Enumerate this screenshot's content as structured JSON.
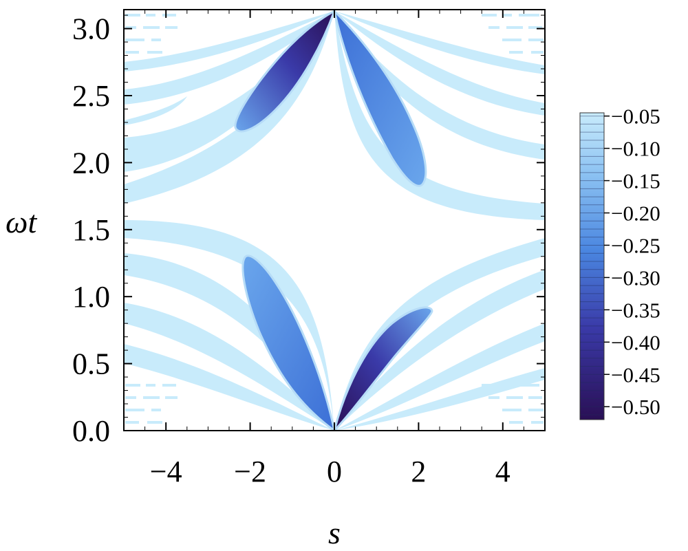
{
  "chart_data": {
    "type": "heatmap",
    "subtype": "contour",
    "title": "",
    "xlabel": "s",
    "ylabel": "ωt",
    "xlim": [
      -5,
      5
    ],
    "ylim": [
      0,
      3.1416
    ],
    "x_ticks": [
      {
        "value": -4,
        "label": "−4"
      },
      {
        "value": -2,
        "label": "−2"
      },
      {
        "value": 0,
        "label": "0"
      },
      {
        "value": 2,
        "label": "2"
      },
      {
        "value": 4,
        "label": "4"
      }
    ],
    "y_ticks": [
      {
        "value": 0.0,
        "label": "0.0"
      },
      {
        "value": 0.5,
        "label": "0.5"
      },
      {
        "value": 1.0,
        "label": "1.0"
      },
      {
        "value": 1.5,
        "label": "1.5"
      },
      {
        "value": 2.0,
        "label": "2.0"
      },
      {
        "value": 2.5,
        "label": "2.5"
      },
      {
        "value": 3.0,
        "label": "3.0"
      }
    ],
    "colorbar": {
      "range": [
        -0.52,
        -0.045
      ],
      "ticks": [
        {
          "value": -0.05,
          "label": "−0.05"
        },
        {
          "value": -0.1,
          "label": "−0.10"
        },
        {
          "value": -0.15,
          "label": "−0.15"
        },
        {
          "value": -0.2,
          "label": "−0.20"
        },
        {
          "value": -0.25,
          "label": "−0.25"
        },
        {
          "value": -0.3,
          "label": "−0.30"
        },
        {
          "value": -0.35,
          "label": "−0.35"
        },
        {
          "value": -0.4,
          "label": "−0.40"
        },
        {
          "value": -0.45,
          "label": "−0.45"
        },
        {
          "value": -0.5,
          "label": "−0.50"
        }
      ],
      "colors": [
        "#c8ebfb",
        "#b6dcf7",
        "#6aa6ec",
        "#3c6fd6",
        "#3a3aa8",
        "#2a0f55"
      ]
    },
    "fills": [
      {
        "name": "lobe-upper-left",
        "cx": -1.4,
        "cy": 2.7,
        "value": -0.5
      },
      {
        "name": "lobe-upper-right",
        "cx": 1.5,
        "cy": 2.5,
        "value": -0.3
      },
      {
        "name": "lobe-lower-left",
        "cx": -1.5,
        "cy": 0.7,
        "value": -0.3
      },
      {
        "name": "lobe-lower-right",
        "cx": 1.4,
        "cy": 0.45,
        "value": -0.5
      }
    ],
    "grid": false,
    "legend": "none"
  }
}
